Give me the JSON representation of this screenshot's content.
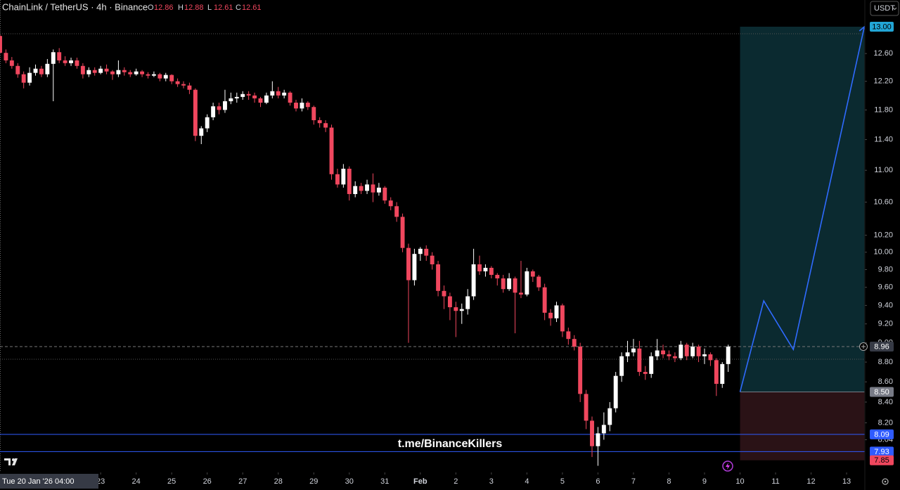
{
  "chart_data": {
    "type": "candlestick",
    "title": "ChainLink / TetherUS · 4h · Binance",
    "ohlc_labels": [
      "O",
      "H",
      "L",
      "C"
    ],
    "currency": "USDT",
    "watermark": "t.me/BinanceKillers",
    "crosshair_date": "Tue 20 Jan '26",
    "crosshair_time": "04:00",
    "up_color": "#ffffff",
    "down_color": "#f0475e",
    "log_scale": true,
    "ylim": [
      7.74,
      13.41
    ],
    "xlim": [
      0,
      146.08
    ],
    "yticks": [
      {
        "value": 12.6,
        "label": "12.60"
      },
      {
        "value": 12.2,
        "label": "12.20"
      },
      {
        "value": 11.8,
        "label": "11.80"
      },
      {
        "value": 11.4,
        "label": "11.40"
      },
      {
        "value": 11,
        "label": "11.00"
      },
      {
        "value": 10.6,
        "label": "10.60"
      },
      {
        "value": 10.2,
        "label": "10.20"
      },
      {
        "value": 10,
        "label": "10.00"
      },
      {
        "value": 9.8,
        "label": "9.80"
      },
      {
        "value": 9.6,
        "label": "9.60"
      },
      {
        "value": 9.4,
        "label": "9.40"
      },
      {
        "value": 9.2,
        "label": "9.20"
      },
      {
        "value": 9,
        "label": "9.00"
      },
      {
        "value": 8.8,
        "label": "8.80"
      },
      {
        "value": 8.6,
        "label": "8.60"
      },
      {
        "value": 8.4,
        "label": "8.40"
      },
      {
        "value": 8.2,
        "label": "8.20"
      },
      {
        "value": 8.04,
        "label": "8.04"
      }
    ],
    "xticks": [
      {
        "value": 17,
        "label": "23"
      },
      {
        "value": 23,
        "label": "24"
      },
      {
        "value": 29,
        "label": "25"
      },
      {
        "value": 35,
        "label": "26"
      },
      {
        "value": 41,
        "label": "27"
      },
      {
        "value": 47,
        "label": "28"
      },
      {
        "value": 53,
        "label": "29"
      },
      {
        "value": 59,
        "label": "30"
      },
      {
        "value": 65,
        "label": "31"
      },
      {
        "value": 71,
        "label": "Feb"
      },
      {
        "value": 77,
        "label": "2"
      },
      {
        "value": 83,
        "label": "3"
      },
      {
        "value": 89,
        "label": "4"
      },
      {
        "value": 95,
        "label": "5"
      },
      {
        "value": 101,
        "label": "6"
      },
      {
        "value": 107,
        "label": "7"
      },
      {
        "value": 113,
        "label": "8"
      },
      {
        "value": 119,
        "label": "9"
      },
      {
        "value": 125,
        "label": "10"
      },
      {
        "value": 131,
        "label": "11"
      },
      {
        "value": 137,
        "label": "12"
      },
      {
        "value": 143,
        "label": "13"
      }
    ],
    "ohlc": [
      [
        12.86,
        12.88,
        12.61,
        12.61
      ],
      [
        12.61,
        12.66,
        12.46,
        12.5
      ],
      [
        12.5,
        12.55,
        12.38,
        12.42
      ],
      [
        12.42,
        12.46,
        12.25,
        12.3
      ],
      [
        12.3,
        12.34,
        12.1,
        12.18
      ],
      [
        12.18,
        12.4,
        12.14,
        12.32
      ],
      [
        12.32,
        12.44,
        12.28,
        12.38
      ],
      [
        12.38,
        12.42,
        12.26,
        12.3
      ],
      [
        12.3,
        12.52,
        12.26,
        12.45
      ],
      [
        12.45,
        12.66,
        11.92,
        12.62
      ],
      [
        12.62,
        12.68,
        12.46,
        12.5
      ],
      [
        12.5,
        12.56,
        12.42,
        12.46
      ],
      [
        12.46,
        12.54,
        12.42,
        12.5
      ],
      [
        12.5,
        12.54,
        12.38,
        12.42
      ],
      [
        12.42,
        12.46,
        12.24,
        12.3
      ],
      [
        12.3,
        12.4,
        12.26,
        12.36
      ],
      [
        12.36,
        12.4,
        12.28,
        12.32
      ],
      [
        12.32,
        12.42,
        12.3,
        12.38
      ],
      [
        12.38,
        12.44,
        12.3,
        12.34
      ],
      [
        12.34,
        12.36,
        12.22,
        12.3
      ],
      [
        12.3,
        12.5,
        12.26,
        12.36
      ],
      [
        12.36,
        12.4,
        12.28,
        12.33
      ],
      [
        12.33,
        12.36,
        12.26,
        12.3
      ],
      [
        12.3,
        12.38,
        12.28,
        12.34
      ],
      [
        12.34,
        12.36,
        12.26,
        12.3
      ],
      [
        12.3,
        12.33,
        12.24,
        12.28
      ],
      [
        12.28,
        12.34,
        12.26,
        12.3
      ],
      [
        12.3,
        12.32,
        12.2,
        12.24
      ],
      [
        12.24,
        12.32,
        12.2,
        12.29
      ],
      [
        12.29,
        12.3,
        12.16,
        12.2
      ],
      [
        12.2,
        12.24,
        12.12,
        12.16
      ],
      [
        12.16,
        12.2,
        12.1,
        12.14
      ],
      [
        12.14,
        12.18,
        12.02,
        12.08
      ],
      [
        12.08,
        12.1,
        11.38,
        11.45
      ],
      [
        11.45,
        11.58,
        11.34,
        11.55
      ],
      [
        11.55,
        11.74,
        11.5,
        11.7
      ],
      [
        11.7,
        11.9,
        11.66,
        11.85
      ],
      [
        11.85,
        11.9,
        11.74,
        11.8
      ],
      [
        11.8,
        12.08,
        11.76,
        11.92
      ],
      [
        11.92,
        12.04,
        11.88,
        11.96
      ],
      [
        11.96,
        12.04,
        11.9,
        11.98
      ],
      [
        11.98,
        12.06,
        11.94,
        12.02
      ],
      [
        12.02,
        12.06,
        11.94,
        12.0
      ],
      [
        12.0,
        12.04,
        11.9,
        11.96
      ],
      [
        11.96,
        11.98,
        11.84,
        11.9
      ],
      [
        11.9,
        12.04,
        11.88,
        12.0
      ],
      [
        12.0,
        12.2,
        11.96,
        12.06
      ],
      [
        12.06,
        12.12,
        11.96,
        12.0
      ],
      [
        12.0,
        12.08,
        11.96,
        12.04
      ],
      [
        12.04,
        12.06,
        11.86,
        11.9
      ],
      [
        11.9,
        11.94,
        11.78,
        11.82
      ],
      [
        11.82,
        11.96,
        11.78,
        11.9
      ],
      [
        11.9,
        11.92,
        11.8,
        11.84
      ],
      [
        11.84,
        11.86,
        11.6,
        11.66
      ],
      [
        11.66,
        11.7,
        11.56,
        11.62
      ],
      [
        11.62,
        11.66,
        11.5,
        11.56
      ],
      [
        11.56,
        11.6,
        10.88,
        10.95
      ],
      [
        10.95,
        11.02,
        10.78,
        10.82
      ],
      [
        10.82,
        11.08,
        10.78,
        11.02
      ],
      [
        11.02,
        11.05,
        10.62,
        10.7
      ],
      [
        10.7,
        10.86,
        10.66,
        10.8
      ],
      [
        10.8,
        10.84,
        10.7,
        10.74
      ],
      [
        10.74,
        10.88,
        10.7,
        10.82
      ],
      [
        10.82,
        10.96,
        10.6,
        10.72
      ],
      [
        10.72,
        10.84,
        10.68,
        10.78
      ],
      [
        10.78,
        10.8,
        10.58,
        10.62
      ],
      [
        10.62,
        10.66,
        10.5,
        10.55
      ],
      [
        10.55,
        10.6,
        10.36,
        10.42
      ],
      [
        10.42,
        10.46,
        10.0,
        10.05
      ],
      [
        10.05,
        10.1,
        9.0,
        9.68
      ],
      [
        9.68,
        10.04,
        9.62,
        9.98
      ],
      [
        9.98,
        10.06,
        9.9,
        10.04
      ],
      [
        10.04,
        10.08,
        9.9,
        9.96
      ],
      [
        9.96,
        10.0,
        9.8,
        9.86
      ],
      [
        9.86,
        9.9,
        9.5,
        9.56
      ],
      [
        9.56,
        9.62,
        9.36,
        9.5
      ],
      [
        9.5,
        9.54,
        9.24,
        9.38
      ],
      [
        9.38,
        9.44,
        9.06,
        9.34
      ],
      [
        9.34,
        9.42,
        9.2,
        9.36
      ],
      [
        9.36,
        9.58,
        9.3,
        9.5
      ],
      [
        9.5,
        10.04,
        9.46,
        9.86
      ],
      [
        9.86,
        9.96,
        9.74,
        9.78
      ],
      [
        9.78,
        9.86,
        9.72,
        9.82
      ],
      [
        9.82,
        9.84,
        9.7,
        9.74
      ],
      [
        9.74,
        9.76,
        9.62,
        9.7
      ],
      [
        9.7,
        9.74,
        9.54,
        9.58
      ],
      [
        9.58,
        9.76,
        9.56,
        9.7
      ],
      [
        9.7,
        9.72,
        9.1,
        9.54
      ],
      [
        9.54,
        9.9,
        9.48,
        9.52
      ],
      [
        9.52,
        9.82,
        9.5,
        9.78
      ],
      [
        9.78,
        9.8,
        9.66,
        9.72
      ],
      [
        9.72,
        9.74,
        9.56,
        9.6
      ],
      [
        9.6,
        9.64,
        9.24,
        9.32
      ],
      [
        9.32,
        9.36,
        9.18,
        9.26
      ],
      [
        9.26,
        9.44,
        9.22,
        9.4
      ],
      [
        9.4,
        9.42,
        9.06,
        9.12
      ],
      [
        9.12,
        9.16,
        8.98,
        9.04
      ],
      [
        9.04,
        9.08,
        8.92,
        8.96
      ],
      [
        8.96,
        9.0,
        8.4,
        8.48
      ],
      [
        8.48,
        8.52,
        8.14,
        8.22
      ],
      [
        8.22,
        8.26,
        7.88,
        7.98
      ],
      [
        7.98,
        8.16,
        7.8,
        8.1
      ],
      [
        8.1,
        8.3,
        8.04,
        8.18
      ],
      [
        8.18,
        8.4,
        8.12,
        8.34
      ],
      [
        8.34,
        8.7,
        8.3,
        8.66
      ],
      [
        8.66,
        8.9,
        8.6,
        8.86
      ],
      [
        8.86,
        9.02,
        8.8,
        8.9
      ],
      [
        8.9,
        9.04,
        8.86,
        8.94
      ],
      [
        8.94,
        9.02,
        8.66,
        8.7
      ],
      [
        8.7,
        8.76,
        8.62,
        8.68
      ],
      [
        8.68,
        8.9,
        8.64,
        8.86
      ],
      [
        8.86,
        9.04,
        8.82,
        8.92
      ],
      [
        8.92,
        8.98,
        8.84,
        8.88
      ],
      [
        8.88,
        8.92,
        8.82,
        8.86
      ],
      [
        8.86,
        8.9,
        8.8,
        8.84
      ],
      [
        8.84,
        9.02,
        8.82,
        8.98
      ],
      [
        8.98,
        9.0,
        8.82,
        8.86
      ],
      [
        8.86,
        9.0,
        8.84,
        8.96
      ],
      [
        8.96,
        8.98,
        8.8,
        8.86
      ],
      [
        8.86,
        8.94,
        8.78,
        8.88
      ],
      [
        8.88,
        8.9,
        8.76,
        8.82
      ],
      [
        8.82,
        8.84,
        8.46,
        8.58
      ],
      [
        8.58,
        8.8,
        8.54,
        8.78
      ],
      [
        8.78,
        8.98,
        8.7,
        8.96
      ]
    ],
    "last_price": 8.96,
    "hlines": [
      8.09,
      7.93
    ],
    "position": {
      "x": [
        125,
        146
      ],
      "target": {
        "value": 13,
        "label": "13.00"
      },
      "entry": {
        "value": 8.5,
        "label": "8.50"
      },
      "stop": 7.85
    },
    "projection": {
      "x": [
        125,
        129,
        134,
        146
      ],
      "y": [
        8.5,
        9.45,
        8.93,
        13
      ]
    }
  }
}
